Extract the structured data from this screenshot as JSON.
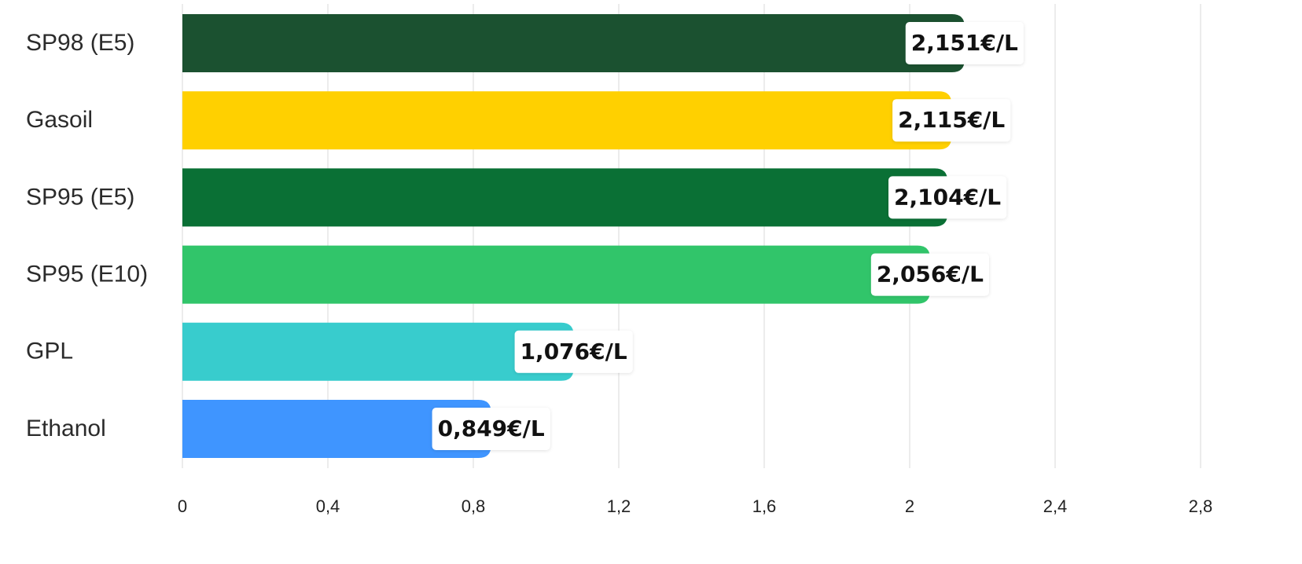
{
  "chart_data": {
    "type": "bar",
    "orientation": "horizontal",
    "categories": [
      "SP98 (E5)",
      "Gasoil",
      "SP95 (E5)",
      "SP95 (E10)",
      "GPL",
      "Ethanol"
    ],
    "values": [
      2.151,
      2.115,
      2.104,
      2.056,
      1.076,
      0.849
    ],
    "value_labels": [
      "2,151€/L",
      "2,115€/L",
      "2,104€/L",
      "2,056€/L",
      "1,076€/L",
      "0,849€/L"
    ],
    "colors": [
      "#1b5130",
      "#ffd000",
      "#0a7035",
      "#31c56a",
      "#38cccd",
      "#3f95ff"
    ],
    "xlim": [
      0,
      2.8
    ],
    "x_ticks": [
      0,
      0.4,
      0.8,
      1.2,
      1.6,
      2,
      2.4,
      2.8
    ],
    "x_tick_labels": [
      "0",
      "0,4",
      "0,8",
      "1,2",
      "1,6",
      "2",
      "2,4",
      "2,8"
    ],
    "title": "",
    "xlabel": "",
    "ylabel": "",
    "grid": "vertical",
    "legend": "none"
  }
}
